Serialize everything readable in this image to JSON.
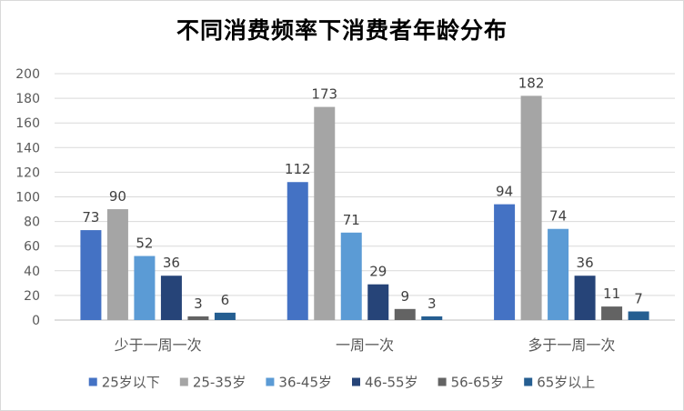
{
  "chart_data": {
    "type": "bar",
    "title": "不同消费频率下消费者年龄分布",
    "categories": [
      "少于一周一次",
      "一周一次",
      "多于一周一次"
    ],
    "series": [
      {
        "name": "25岁以下",
        "color": "#4472c4",
        "values": [
          73,
          112,
          94
        ]
      },
      {
        "name": "25-35岁",
        "color": "#a5a5a5",
        "values": [
          90,
          173,
          182
        ]
      },
      {
        "name": "36-45岁",
        "color": "#5b9bd5",
        "values": [
          52,
          71,
          74
        ]
      },
      {
        "name": "46-55岁",
        "color": "#264478",
        "values": [
          36,
          29,
          36
        ]
      },
      {
        "name": "56-65岁",
        "color": "#636363",
        "values": [
          3,
          9,
          11
        ]
      },
      {
        "name": "65岁以上",
        "color": "#255e91",
        "values": [
          6,
          3,
          7
        ]
      }
    ],
    "ylim": [
      0,
      200
    ],
    "yticks": [
      0,
      20,
      40,
      60,
      80,
      100,
      120,
      140,
      160,
      180,
      200
    ],
    "grid": true,
    "legend_position": "bottom",
    "xlabel": "",
    "ylabel": ""
  }
}
